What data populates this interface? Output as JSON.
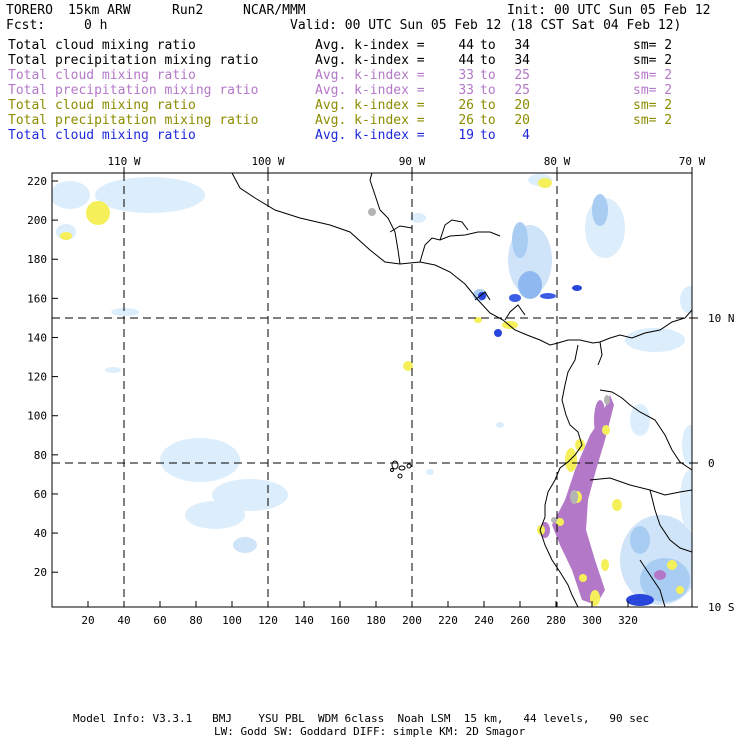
{
  "header": {
    "model": "TORERO",
    "resolution": "15km ARW",
    "run": "Run2",
    "org": "NCAR/MMM",
    "init": "Init: 00 UTC Sun 05 Feb 12",
    "fcst_label": "Fcst:",
    "fcst_value": "0 h",
    "valid": "Valid: 00 UTC Sun 05 Feb 12 (18 CST Sat 04 Feb 12)"
  },
  "legend": [
    {
      "label": "Total cloud mixing ratio",
      "kidx_label": "Avg. k-index =",
      "hi": "44",
      "to": "to",
      "lo": "34",
      "sm": "sm= 2",
      "color": "#000000"
    },
    {
      "label": "Total precipitation mixing ratio",
      "kidx_label": "Avg. k-index =",
      "hi": "44",
      "to": "to",
      "lo": "34",
      "sm": "sm= 2",
      "color": "#000000"
    },
    {
      "label": "Total cloud mixing ratio",
      "kidx_label": "Avg. k-index =",
      "hi": "33",
      "to": "to",
      "lo": "25",
      "sm": "sm= 2",
      "color": "#b478c8"
    },
    {
      "label": "Total precipitation mixing ratio",
      "kidx_label": "Avg. k-index =",
      "hi": "33",
      "to": "to",
      "lo": "25",
      "sm": "sm= 2",
      "color": "#b478c8"
    },
    {
      "label": "Total cloud mixing ratio",
      "kidx_label": "Avg. k-index =",
      "hi": "26",
      "to": "to",
      "lo": "20",
      "sm": "sm= 2",
      "color": "#8c8c00"
    },
    {
      "label": "Total precipitation mixing ratio",
      "kidx_label": "Avg. k-index =",
      "hi": "26",
      "to": "to",
      "lo": "20",
      "sm": "sm= 2",
      "color": "#8c8c00"
    },
    {
      "label": "Total cloud mixing ratio",
      "kidx_label": "Avg. k-index =",
      "hi": "19",
      "to": "to",
      "lo": "4",
      "sm": "",
      "color": "#1e28dc"
    }
  ],
  "map": {
    "lon_labels": [
      "110 W",
      "100 W",
      "90 W",
      "80 W",
      "70 W"
    ],
    "lat_labels": [
      "10 N",
      "0",
      "10 S"
    ],
    "y_ticks": [
      "220",
      "200",
      "180",
      "160",
      "140",
      "120",
      "100",
      "80",
      "60",
      "40",
      "20"
    ],
    "x_ticks": [
      "20",
      "40",
      "60",
      "80",
      "100",
      "120",
      "140",
      "160",
      "180",
      "200",
      "220",
      "240",
      "260",
      "280",
      "300",
      "320"
    ],
    "colors": {
      "light_blue": "#cfe8fa",
      "mid_blue": "#a9cdf2",
      "dark_blue": "#2846dc",
      "yellow": "#f5f05a",
      "purple": "#b478c8",
      "gray": "#b4b4b4"
    }
  },
  "footer": {
    "line1": "Model Info: V3.3.1   BMJ    YSU PBL  WDM 6class  Noah LSM  15 km,   44 levels,   90 sec",
    "line2": "LW: Godd SW: Goddard DIFF: simple KM: 2D Smagor"
  }
}
